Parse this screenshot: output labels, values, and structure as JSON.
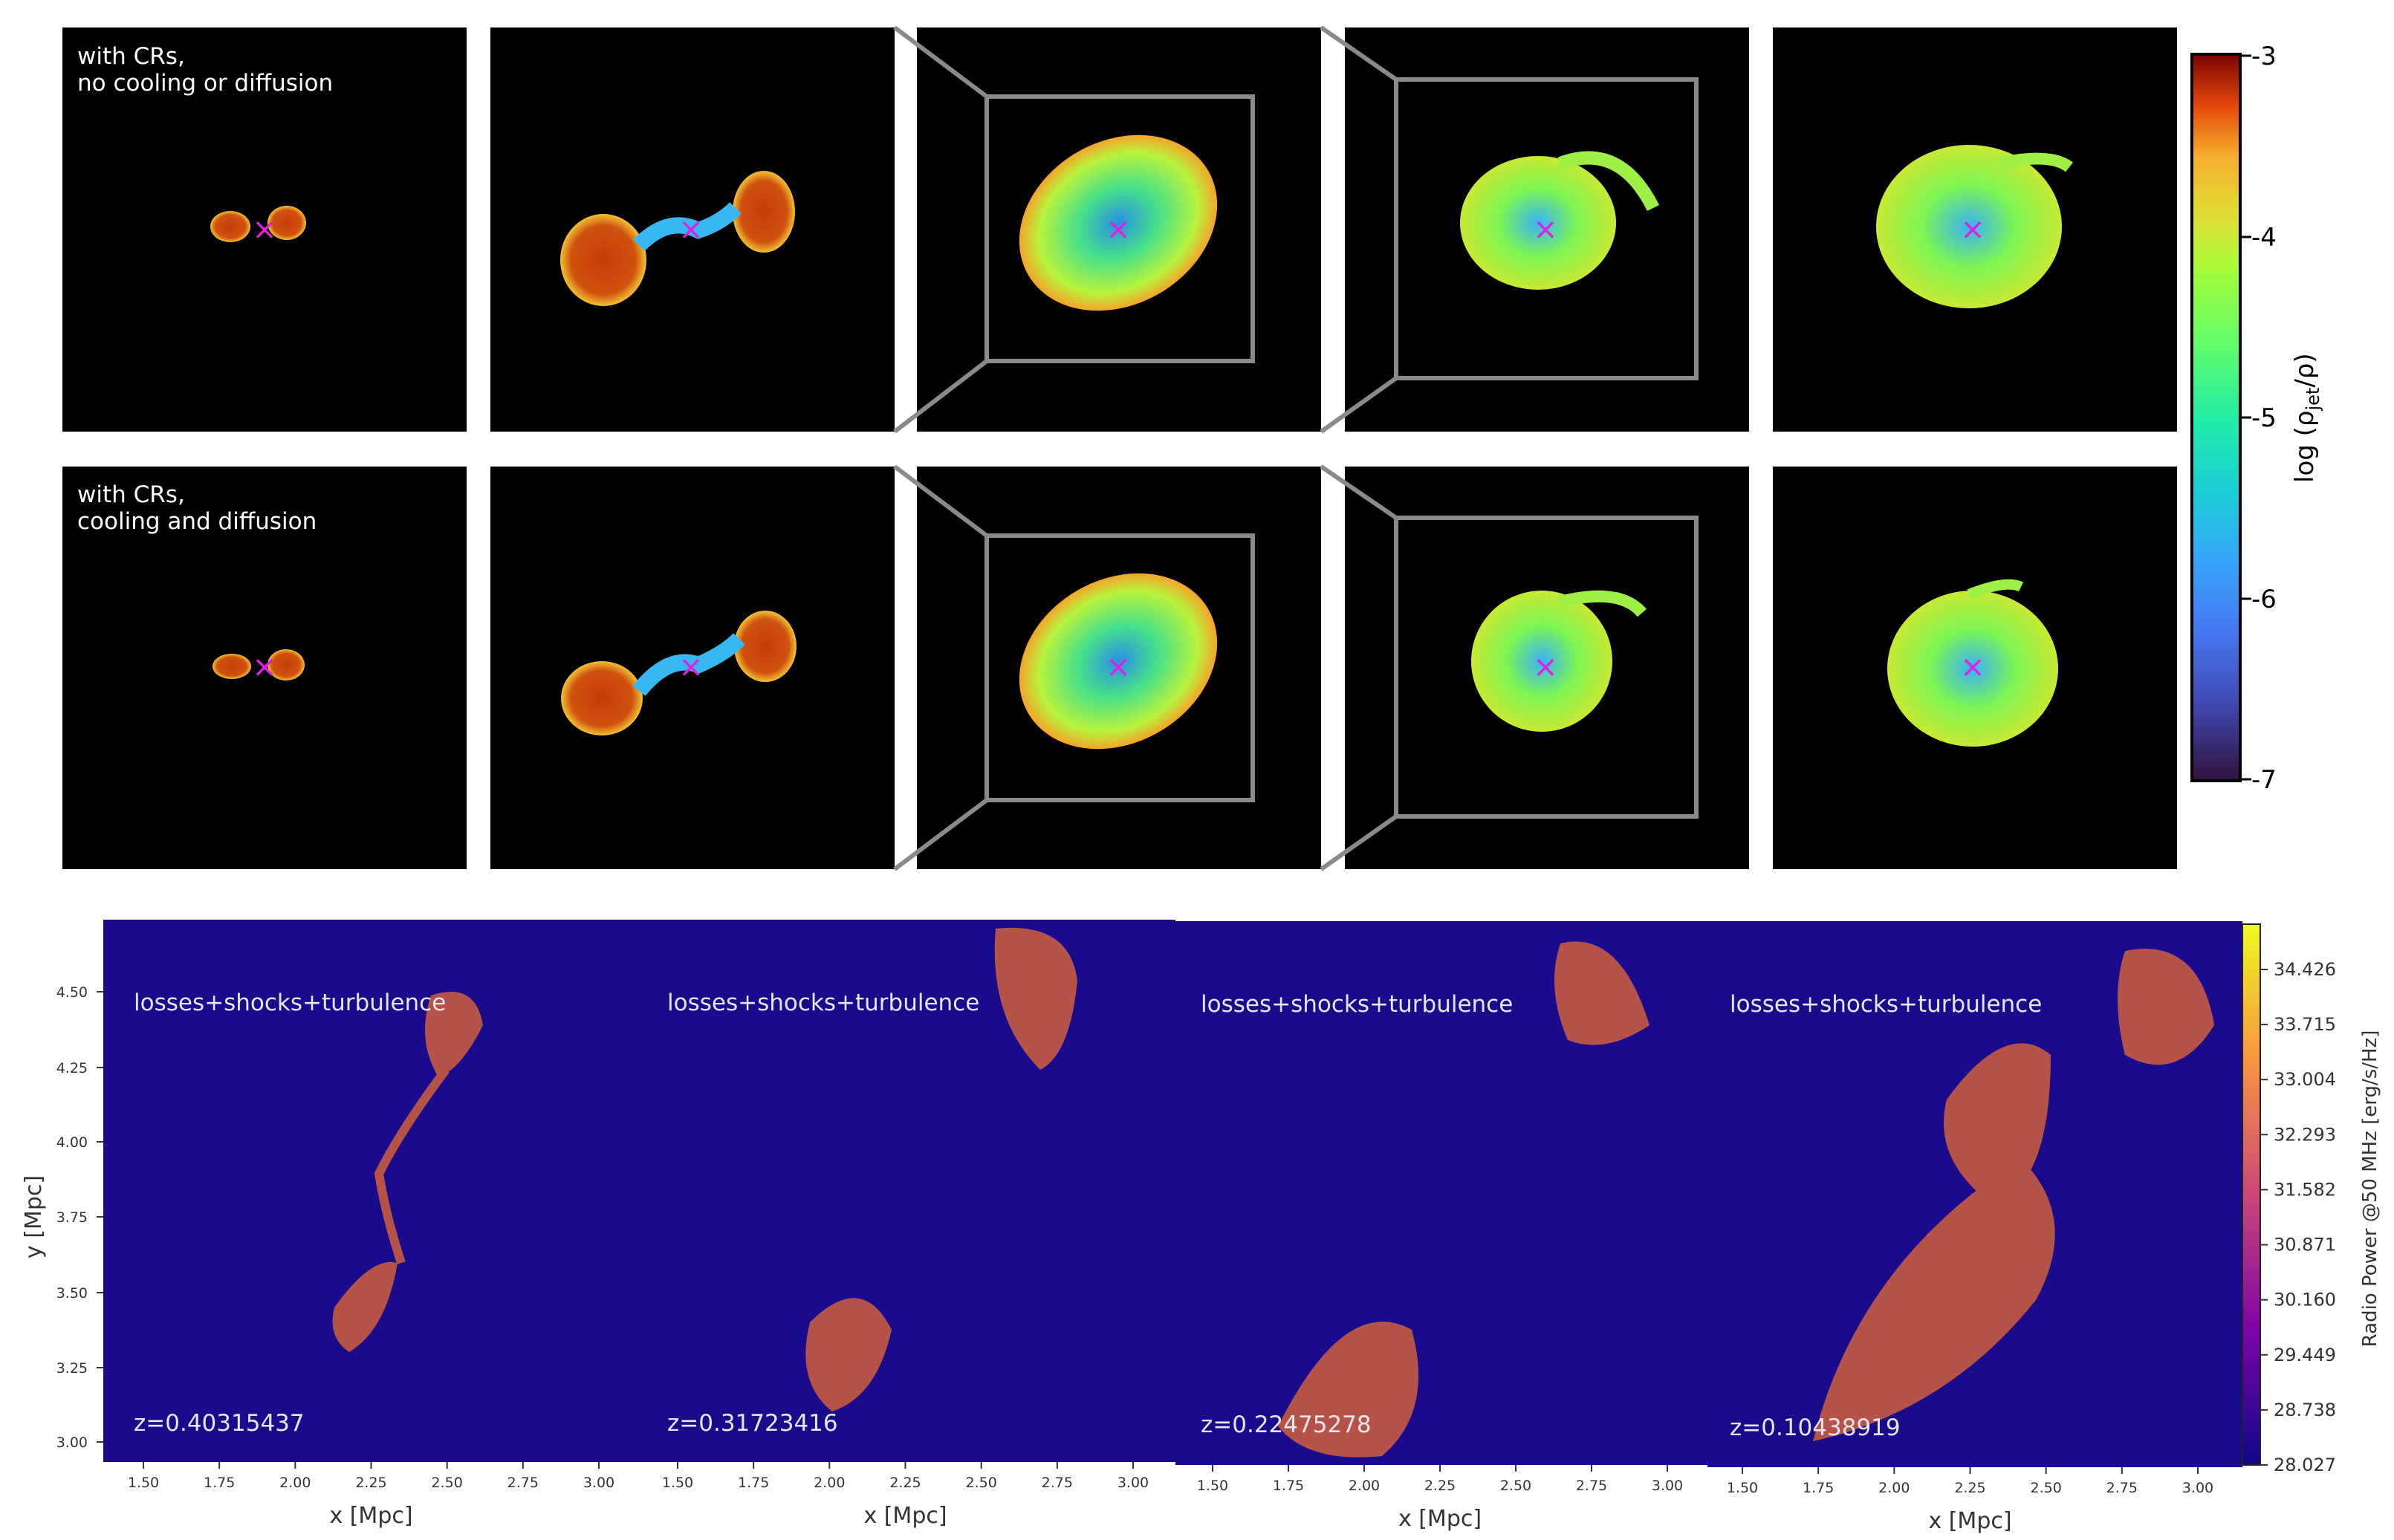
{
  "top_figure": {
    "row_labels": [
      [
        "with CRs,",
        "no cooling or diffusion"
      ],
      [
        "with CRs,",
        "cooling and diffusion"
      ]
    ],
    "colorbar": {
      "label_prefix": "log (ρ",
      "label_sub": "jet",
      "label_suffix": "/ρ)",
      "ticks": [
        "-3",
        "-4",
        "-5",
        "-6",
        "-7"
      ],
      "tick_values": [
        -3,
        -4,
        -5,
        -6,
        -7
      ],
      "range": [
        -7,
        -3
      ],
      "colormap": "turbo"
    },
    "center_marker": "×",
    "marker_color": "#e020e0",
    "panel_background": "#000000"
  },
  "bottom_figure": {
    "panel_background": "#1a0b8c",
    "panels": [
      {
        "annotation": "losses+shocks+turbulence",
        "redshift": "z=0.40315437"
      },
      {
        "annotation": "losses+shocks+turbulence",
        "redshift": "z=0.31723416"
      },
      {
        "annotation": "losses+shocks+turbulence",
        "redshift": "z=0.22475278"
      },
      {
        "annotation": "losses+shocks+turbulence",
        "redshift": "z=0.10438919"
      }
    ],
    "xlabel": "x [Mpc]",
    "ylabel": "y [Mpc]",
    "xticks": [
      "1.50",
      "1.75",
      "2.00",
      "2.25",
      "2.50",
      "2.75",
      "3.00"
    ],
    "yticks": [
      "4.50",
      "4.25",
      "4.00",
      "3.75",
      "3.50",
      "3.25",
      "3.00"
    ],
    "colorbar": {
      "label": "Radio Power @50 MHz [erg/s/Hz]",
      "ticks": [
        "34.426",
        "33.715",
        "33.004",
        "32.293",
        "31.582",
        "30.871",
        "30.160",
        "29.449",
        "28.738",
        "28.027"
      ],
      "colormap": "plasma"
    }
  }
}
